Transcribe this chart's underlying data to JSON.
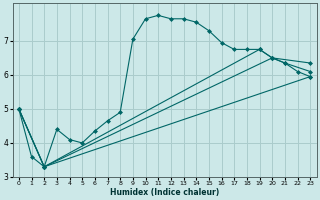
{
  "xlabel": "Humidex (Indice chaleur)",
  "bg_color": "#cce8e8",
  "grid_color": "#aacccc",
  "line_color": "#006666",
  "xlim": [
    -0.5,
    23.5
  ],
  "ylim": [
    3,
    8.1
  ],
  "yticks": [
    3,
    4,
    5,
    6,
    7
  ],
  "xticks": [
    0,
    1,
    2,
    3,
    4,
    5,
    6,
    7,
    8,
    9,
    10,
    11,
    12,
    13,
    14,
    15,
    16,
    17,
    18,
    19,
    20,
    21,
    22,
    23
  ],
  "curve1_x": [
    0,
    1,
    2,
    3,
    4,
    5,
    6,
    7,
    8,
    9,
    10,
    11,
    12,
    13,
    14,
    15,
    16,
    17,
    18,
    19,
    20,
    21,
    22,
    23
  ],
  "curve1_y": [
    5.0,
    3.6,
    3.3,
    4.4,
    4.1,
    4.0,
    4.35,
    4.65,
    4.9,
    7.05,
    7.65,
    7.75,
    7.65,
    7.65,
    7.55,
    7.3,
    6.95,
    6.75,
    6.75,
    6.75,
    6.5,
    6.35,
    6.1,
    5.95
  ],
  "curve2_x": [
    0,
    2,
    23
  ],
  "curve2_y": [
    5.0,
    3.3,
    5.95
  ],
  "curve3_x": [
    0,
    2,
    20,
    23
  ],
  "curve3_y": [
    5.0,
    3.3,
    6.5,
    6.35
  ],
  "curve4_x": [
    0,
    2,
    19,
    20,
    21,
    23
  ],
  "curve4_y": [
    5.0,
    3.3,
    6.75,
    6.5,
    6.35,
    6.1
  ]
}
